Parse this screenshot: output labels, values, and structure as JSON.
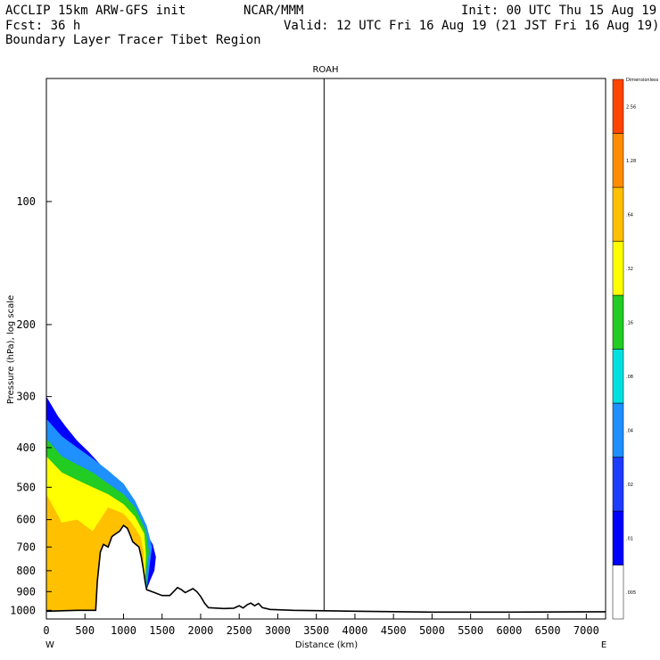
{
  "header": {
    "line1_left": "ACCLIP 15km ARW-GFS init",
    "line1_mid": "NCAR/MMM",
    "line1_right": "Init: 00 UTC Thu 15 Aug 19",
    "line2_left": "Fcst:   36 h",
    "line2_right": "Valid: 12 UTC Fri 16 Aug 19 (21 JST Fri 16 Aug 19)",
    "line3_left": "Boundary Layer Tracer  Tibet Region"
  },
  "chart_data": {
    "type": "heatmap",
    "title": "ROAH",
    "xlabel": "Distance (km)",
    "ylabel": "Pressure (hPa), log scale",
    "x_end_labels": {
      "left": "W",
      "right": "E"
    },
    "xlim": [
      0,
      7250
    ],
    "ylim": [
      1050,
      50
    ],
    "y_scale": "log",
    "x_ticks": [
      0,
      500,
      1000,
      1500,
      2000,
      2500,
      3000,
      3500,
      4000,
      4500,
      5000,
      5500,
      6000,
      6500,
      7000
    ],
    "y_ticks": [
      100,
      200,
      300,
      400,
      500,
      600,
      700,
      800,
      900,
      1000
    ],
    "marker_x": 3600,
    "colorbar": {
      "label_top": "Dimensionless",
      "levels": [
        ".005",
        ".01",
        ".02",
        ".04",
        ".08",
        ".16",
        ".32",
        ".64",
        "1.28",
        "2.56"
      ],
      "colors": [
        "#ffffff",
        "#0000ff",
        "#1e3cff",
        "#1e90ff",
        "#00e0e0",
        "#22cc22",
        "#ffff00",
        "#ffc000",
        "#ff8c00",
        "#ff4500"
      ]
    },
    "terrain": [
      [
        0,
        1005
      ],
      [
        150,
        1003
      ],
      [
        400,
        1000
      ],
      [
        640,
        1000
      ],
      [
        660,
        850
      ],
      [
        700,
        720
      ],
      [
        740,
        690
      ],
      [
        800,
        700
      ],
      [
        850,
        660
      ],
      [
        900,
        650
      ],
      [
        950,
        640
      ],
      [
        1000,
        620
      ],
      [
        1050,
        630
      ],
      [
        1080,
        650
      ],
      [
        1120,
        680
      ],
      [
        1160,
        690
      ],
      [
        1200,
        700
      ],
      [
        1230,
        740
      ],
      [
        1260,
        800
      ],
      [
        1280,
        850
      ],
      [
        1300,
        890
      ],
      [
        1400,
        905
      ],
      [
        1500,
        920
      ],
      [
        1600,
        920
      ],
      [
        1650,
        900
      ],
      [
        1700,
        880
      ],
      [
        1750,
        890
      ],
      [
        1800,
        905
      ],
      [
        1850,
        895
      ],
      [
        1900,
        885
      ],
      [
        1950,
        900
      ],
      [
        2000,
        925
      ],
      [
        2050,
        960
      ],
      [
        2100,
        985
      ],
      [
        2300,
        990
      ],
      [
        2430,
        988
      ],
      [
        2500,
        975
      ],
      [
        2550,
        987
      ],
      [
        2600,
        970
      ],
      [
        2650,
        960
      ],
      [
        2700,
        975
      ],
      [
        2750,
        962
      ],
      [
        2800,
        985
      ],
      [
        2900,
        995
      ],
      [
        3200,
        1000
      ],
      [
        4000,
        1005
      ],
      [
        5000,
        1010
      ],
      [
        6000,
        1010
      ],
      [
        7250,
        1008
      ]
    ],
    "tracer_layers": [
      {
        "level": ".01",
        "outline": [
          [
            0,
            300
          ],
          [
            150,
            335
          ],
          [
            250,
            355
          ],
          [
            400,
            385
          ],
          [
            550,
            410
          ],
          [
            700,
            440
          ],
          [
            850,
            470
          ],
          [
            1000,
            505
          ],
          [
            1100,
            540
          ],
          [
            1200,
            580
          ],
          [
            1300,
            650
          ],
          [
            1380,
            690
          ],
          [
            1420,
            740
          ],
          [
            1400,
            800
          ],
          [
            1340,
            850
          ]
        ]
      },
      {
        "level": ".04",
        "outline": [
          [
            0,
            340
          ],
          [
            200,
            375
          ],
          [
            400,
            400
          ],
          [
            600,
            425
          ],
          [
            800,
            455
          ],
          [
            1000,
            490
          ],
          [
            1150,
            540
          ],
          [
            1300,
            620
          ],
          [
            1370,
            700
          ],
          [
            1330,
            800
          ]
        ]
      },
      {
        "level": ".16",
        "outline": [
          [
            0,
            380
          ],
          [
            200,
            420
          ],
          [
            400,
            440
          ],
          [
            600,
            460
          ],
          [
            800,
            490
          ],
          [
            1000,
            520
          ],
          [
            1150,
            560
          ],
          [
            1290,
            640
          ],
          [
            1330,
            720
          ],
          [
            1300,
            790
          ]
        ]
      },
      {
        "level": ".32",
        "outline": [
          [
            0,
            420
          ],
          [
            200,
            460
          ],
          [
            400,
            480
          ],
          [
            600,
            500
          ],
          [
            800,
            520
          ],
          [
            1000,
            550
          ],
          [
            1150,
            590
          ],
          [
            1270,
            650
          ],
          [
            1290,
            730
          ]
        ]
      },
      {
        "level": ".64",
        "outline": [
          [
            0,
            520
          ],
          [
            200,
            610
          ],
          [
            400,
            600
          ],
          [
            600,
            640
          ],
          [
            800,
            560
          ],
          [
            1000,
            580
          ],
          [
            1100,
            610
          ],
          [
            1220,
            660
          ],
          [
            1260,
            720
          ]
        ]
      }
    ]
  }
}
